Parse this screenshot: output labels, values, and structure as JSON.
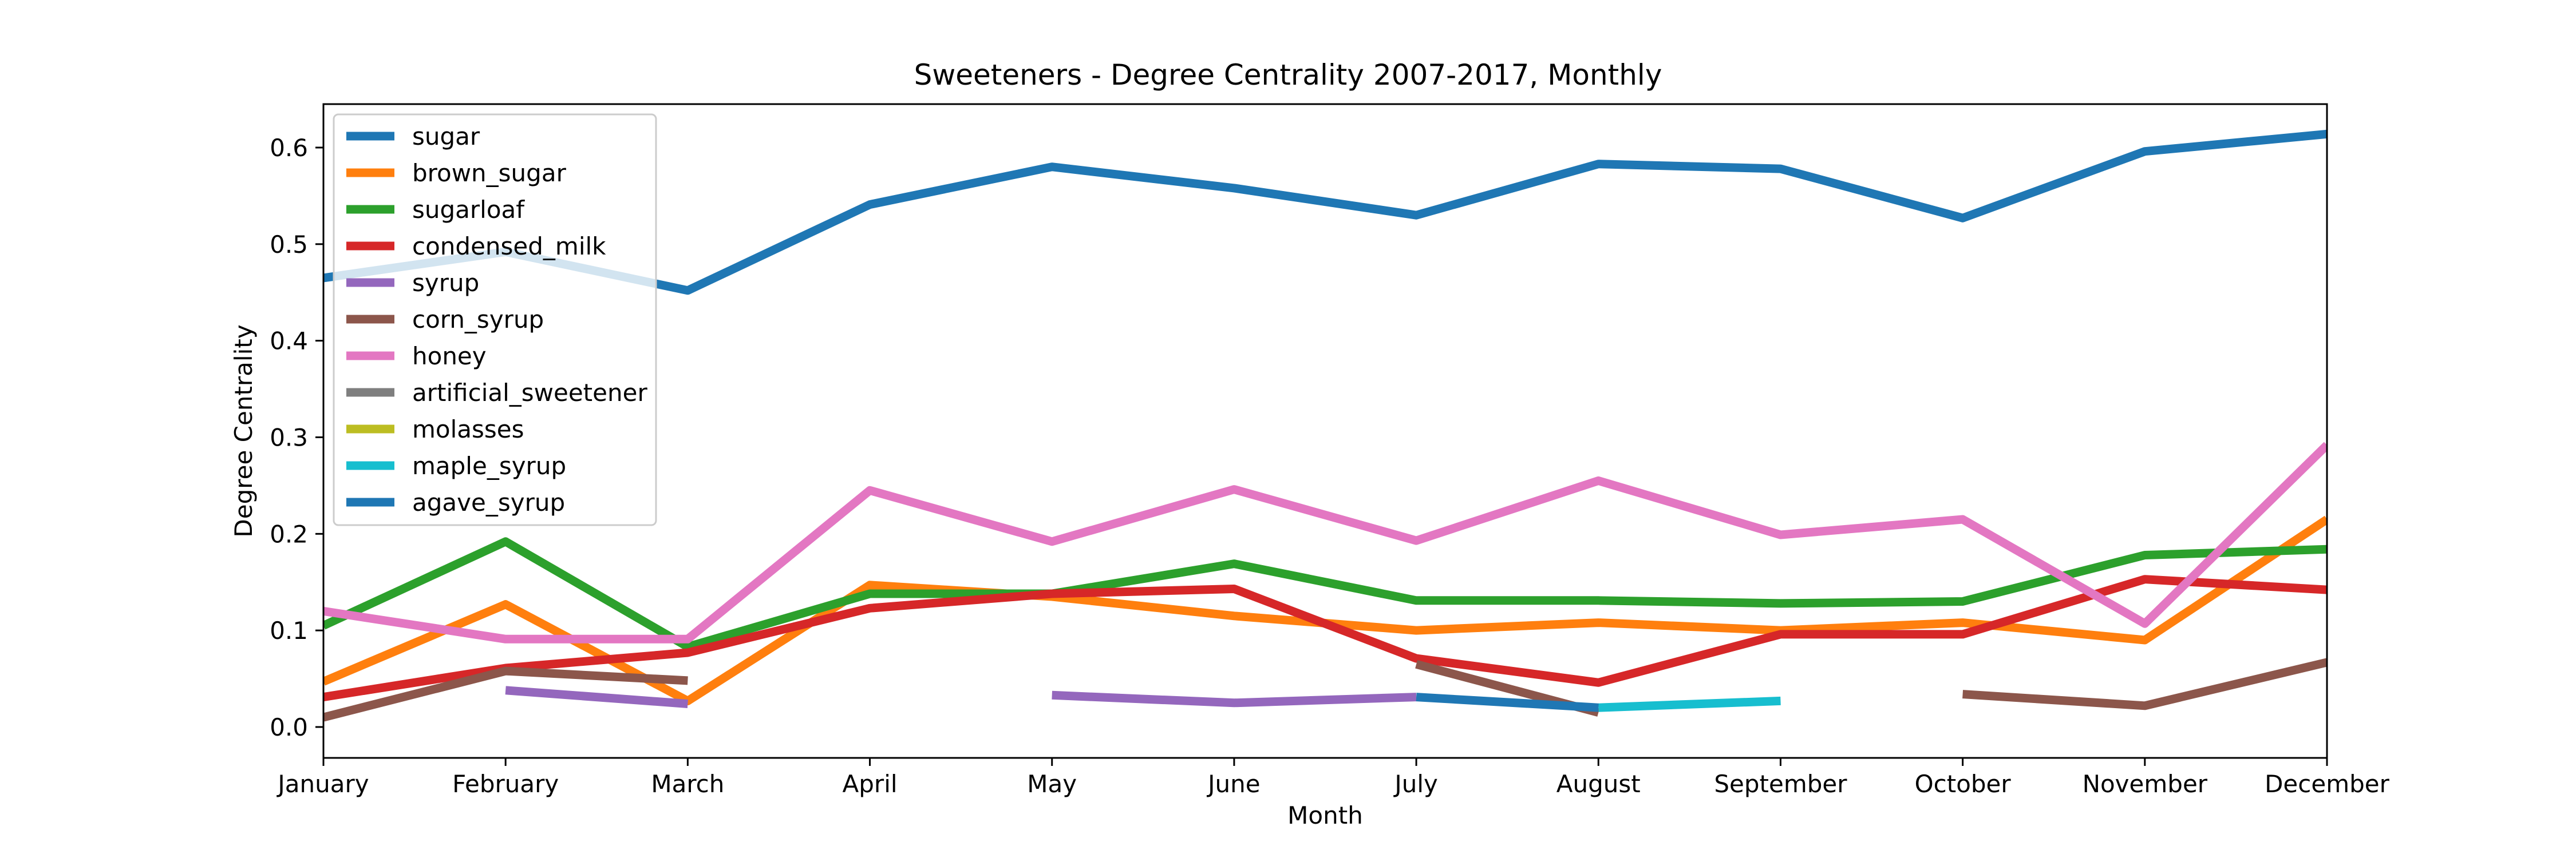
{
  "chart_data": {
    "type": "line",
    "title": "Sweeteners - Degree Centrality 2007-2017, Monthly",
    "xlabel": "Month",
    "ylabel": "Degree Centrality",
    "categories": [
      "January",
      "February",
      "March",
      "April",
      "May",
      "June",
      "July",
      "August",
      "September",
      "October",
      "November",
      "December"
    ],
    "ylim": [
      -0.032,
      0.645
    ],
    "yticks": [
      0.0,
      0.1,
      0.2,
      0.3,
      0.4,
      0.5,
      0.6
    ],
    "ytick_labels": [
      "0.0",
      "0.1",
      "0.2",
      "0.3",
      "0.4",
      "0.5",
      "0.6"
    ],
    "grid": false,
    "legend_position": "upper-left",
    "series": [
      {
        "name": "sugar",
        "color": "#1f77b4",
        "values": [
          0.465,
          0.492,
          0.452,
          0.541,
          0.58,
          0.558,
          0.53,
          0.583,
          0.578,
          0.527,
          0.596,
          0.614
        ]
      },
      {
        "name": "brown_sugar",
        "color": "#ff7f0e",
        "values": [
          0.047,
          0.127,
          0.027,
          0.147,
          0.135,
          0.115,
          0.1,
          0.108,
          0.1,
          0.108,
          0.09,
          0.215
        ]
      },
      {
        "name": "sugarloaf",
        "color": "#2ca02c",
        "values": [
          0.105,
          0.192,
          0.083,
          0.138,
          0.138,
          0.169,
          0.131,
          0.131,
          0.128,
          0.13,
          0.178,
          0.184
        ]
      },
      {
        "name": "condensed_milk",
        "color": "#d62728",
        "values": [
          0.031,
          0.061,
          0.077,
          0.123,
          0.138,
          0.143,
          0.071,
          0.046,
          0.096,
          0.096,
          0.153,
          0.142
        ]
      },
      {
        "name": "syrup",
        "color": "#9467bd",
        "values": [
          null,
          0.038,
          0.024,
          null,
          0.033,
          0.025,
          0.031,
          null,
          null,
          null,
          null,
          null
        ]
      },
      {
        "name": "corn_syrup",
        "color": "#8c564b",
        "values": [
          0.01,
          0.058,
          0.048,
          null,
          null,
          null,
          0.065,
          0.015,
          null,
          0.034,
          0.022,
          0.067
        ]
      },
      {
        "name": "honey",
        "color": "#e377c2",
        "values": [
          0.12,
          0.091,
          0.091,
          0.245,
          0.192,
          0.246,
          0.193,
          0.255,
          0.199,
          0.215,
          0.107,
          0.292
        ]
      },
      {
        "name": "artificial_sweetener",
        "color": "#7f7f7f",
        "values": [
          null,
          null,
          null,
          null,
          null,
          null,
          null,
          null,
          null,
          null,
          null,
          null
        ]
      },
      {
        "name": "molasses",
        "color": "#bcbd22",
        "values": [
          null,
          null,
          null,
          null,
          null,
          null,
          null,
          null,
          null,
          null,
          null,
          null
        ]
      },
      {
        "name": "maple_syrup",
        "color": "#17becf",
        "values": [
          null,
          null,
          null,
          null,
          null,
          null,
          null,
          0.02,
          0.027,
          null,
          null,
          null
        ]
      },
      {
        "name": "agave_syrup",
        "color": "#1f77b4",
        "values": [
          null,
          null,
          null,
          null,
          null,
          null,
          0.031,
          0.02,
          null,
          null,
          null,
          null
        ]
      }
    ]
  }
}
